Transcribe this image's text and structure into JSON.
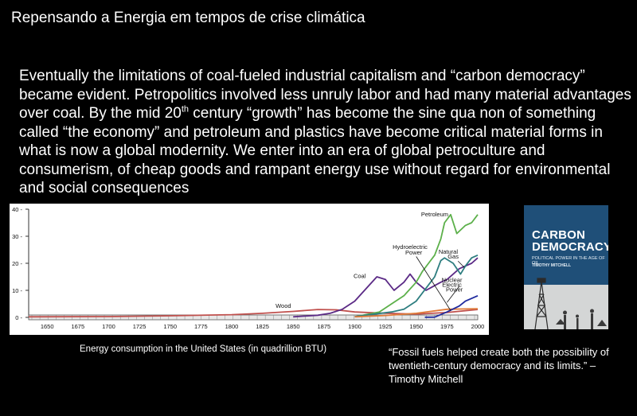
{
  "slide": {
    "title": "Repensando a Energia em tempos de crise climática",
    "paragraph_part1": "Eventually the limitations of coal-fueled industrial capitalism and “carbon democracy” became evident. Petropolitics involved less unruly labor and had many material advantages over coal. By the mid 20",
    "paragraph_sup": "th",
    "paragraph_part2": " century “growth” has become the sine qua non of something called “the economy” and petroleum and plastics have become critical material forms in what is now a global modernity. We enter into an era of global petroculture and consumerism, of cheap goods and rampant energy use without regard for environmental and social consequences",
    "chart_caption": "Energy consumption in the United States (in quadrillion BTU)",
    "quote": "“Fossil fuels helped create both the possibility of twentieth-century democracy and its limits.” – Timothy Mitchell"
  },
  "book": {
    "title_line1": "CARBON",
    "title_line2": "DEMOCRACY",
    "subtitle": "POLITICAL POWER IN THE AGE OF OIL",
    "author": "TIMOTHY MITCHELL",
    "cover_color": "#1f4f78"
  },
  "chart_data": {
    "type": "line",
    "x_ticks": [
      1650,
      1675,
      1700,
      1725,
      1750,
      1775,
      1800,
      1825,
      1850,
      1875,
      1900,
      1925,
      1950,
      1975,
      2000
    ],
    "y_ticks": [
      0,
      10,
      20,
      30,
      40
    ],
    "xlim": [
      1635,
      2000
    ],
    "ylim": [
      0,
      40
    ],
    "series": [
      {
        "name": "Wood",
        "color": "#c0504d",
        "x": [
          1635,
          1700,
          1750,
          1800,
          1825,
          1850,
          1870,
          1885,
          1900,
          1925,
          1950,
          1975,
          2000
        ],
        "y": [
          0.2,
          0.3,
          0.6,
          1.0,
          1.5,
          2.2,
          2.9,
          2.8,
          2.0,
          1.5,
          1.2,
          1.8,
          2.9
        ]
      },
      {
        "name": "Coal",
        "color": "#5b2a86",
        "x": [
          1850,
          1870,
          1880,
          1890,
          1900,
          1910,
          1918,
          1925,
          1932,
          1940,
          1945,
          1950,
          1958,
          1962,
          1970,
          1975,
          1985,
          1995,
          2000
        ],
        "y": [
          0.2,
          0.8,
          1.5,
          3,
          6,
          11,
          15,
          14,
          10,
          13,
          16,
          13,
          10,
          11,
          13,
          14,
          18,
          20,
          22
        ]
      },
      {
        "name": "Petroleum",
        "color": "#5cb04a",
        "x": [
          1900,
          1920,
          1930,
          1940,
          1950,
          1955,
          1960,
          1965,
          1970,
          1973,
          1978,
          1983,
          1990,
          1995,
          2000
        ],
        "y": [
          0.2,
          2,
          5,
          8,
          13,
          17,
          20,
          23,
          29,
          35,
          38,
          31,
          34,
          35,
          38
        ]
      },
      {
        "name": "Natural Gas",
        "color": "#2e7e80",
        "x": [
          1900,
          1930,
          1940,
          1950,
          1960,
          1965,
          1970,
          1973,
          1980,
          1986,
          1990,
          1995,
          2000
        ],
        "y": [
          0.3,
          2,
          3,
          6,
          12,
          15,
          21,
          22,
          20,
          16,
          19,
          22,
          23
        ]
      },
      {
        "name": "Hydroelectric Power",
        "color": "#e07b39",
        "x": [
          1900,
          1925,
          1950,
          1975,
          2000
        ],
        "y": [
          0.2,
          0.7,
          1.5,
          3,
          3.2
        ]
      },
      {
        "name": "Nuclear Electric Power",
        "color": "#1f2a9e",
        "x": [
          1957,
          1965,
          1975,
          1985,
          1990,
          2000
        ],
        "y": [
          0.05,
          0.1,
          2,
          4.2,
          6,
          8
        ]
      }
    ],
    "labels": [
      {
        "text": "Petroleum",
        "x": 1965,
        "y": 37.3
      },
      {
        "text": "Hydroelectric",
        "x": 1945,
        "y": 25.3
      },
      {
        "text": "Power",
        "x": 1948,
        "y": 23.3
      },
      {
        "text": "Natural",
        "x": 1976,
        "y": 23.6
      },
      {
        "text": "Gas",
        "x": 1980,
        "y": 21.8
      },
      {
        "text": "Coal",
        "x": 1904,
        "y": 14.5
      },
      {
        "text": "Nuclear",
        "x": 1979,
        "y": 13.1
      },
      {
        "text": "Electric",
        "x": 1979,
        "y": 11.3
      },
      {
        "text": "Power",
        "x": 1981,
        "y": 9.5
      },
      {
        "text": "Wood",
        "x": 1842,
        "y": 3.5
      }
    ]
  }
}
